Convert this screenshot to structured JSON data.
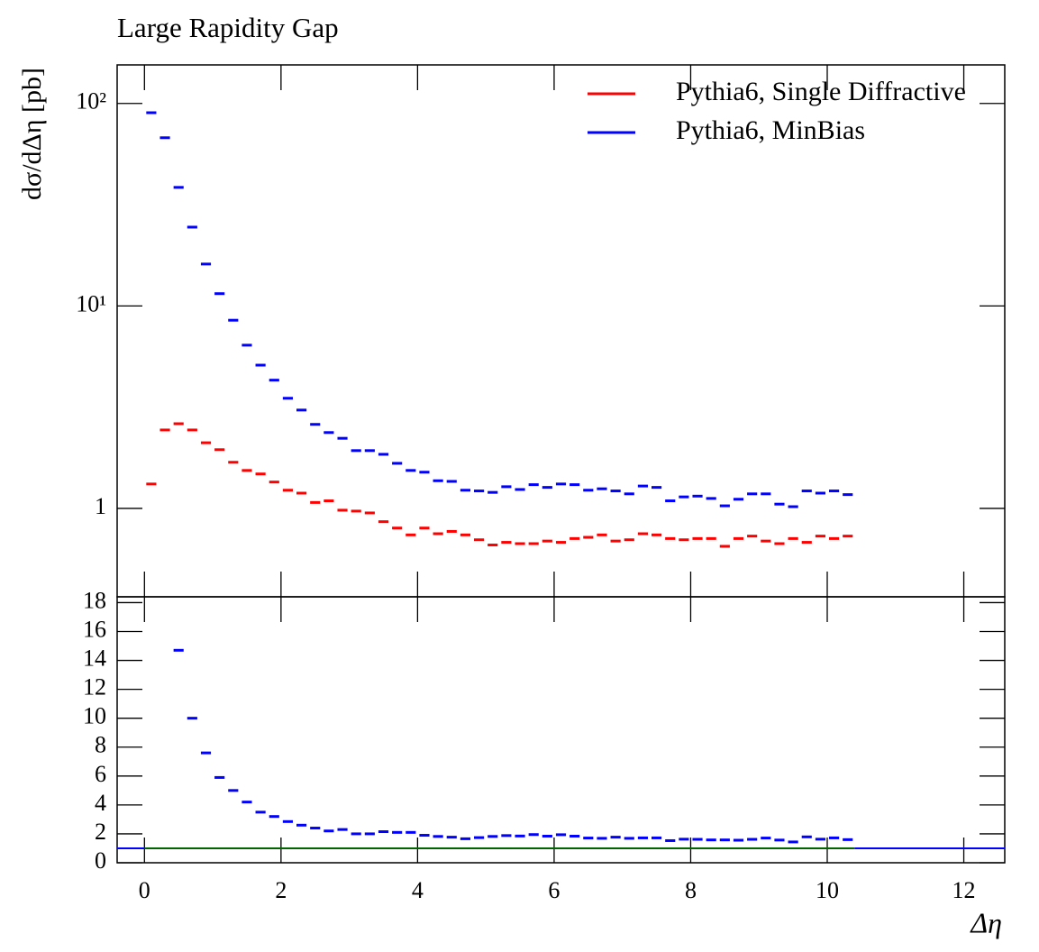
{
  "chart_data": [
    {
      "type": "histogram",
      "title": "Large Rapidity Gap",
      "ylabel": "dσ/dΔη [pb]",
      "log_y": true,
      "xlim": [
        -0.4,
        12.6
      ],
      "ylim": [
        0.366,
        155
      ],
      "yticks": [
        1,
        {
          "value": 10,
          "label": "10¹"
        },
        {
          "value": 100,
          "label": "10²"
        }
      ],
      "legend": "upper right",
      "bins": [
        0,
        0.2,
        0.4,
        0.6,
        0.8,
        1,
        1.2,
        1.4,
        1.6,
        1.8,
        2,
        2.2,
        2.4,
        2.6,
        2.8,
        3,
        3.2,
        3.4,
        3.6,
        3.8,
        4,
        4.2,
        4.4,
        4.6,
        4.8,
        5,
        5.2,
        5.4,
        5.6,
        5.8,
        6,
        6.2,
        6.4,
        6.6,
        6.8,
        7,
        7.2,
        7.4,
        7.6,
        7.8,
        8,
        8.2,
        8.4,
        8.6,
        8.8,
        9,
        9.2,
        9.4,
        9.6,
        9.8,
        10,
        10.2,
        10.4
      ],
      "series": [
        {
          "name": "Pythia6, Single Diffractive",
          "color": "#ff0000",
          "values": [
            1.32,
            2.44,
            2.62,
            2.44,
            2.11,
            1.95,
            1.69,
            1.54,
            1.48,
            1.35,
            1.23,
            1.19,
            1.07,
            1.09,
            0.98,
            0.97,
            0.95,
            0.86,
            0.8,
            0.74,
            0.8,
            0.75,
            0.77,
            0.74,
            0.7,
            0.66,
            0.68,
            0.67,
            0.67,
            0.69,
            0.68,
            0.71,
            0.72,
            0.74,
            0.69,
            0.7,
            0.75,
            0.74,
            0.71,
            0.7,
            0.71,
            0.71,
            0.65,
            0.71,
            0.73,
            0.69,
            0.67,
            0.71,
            0.68,
            0.73,
            0.71,
            0.73
          ]
        },
        {
          "name": "Pythia6, MinBias",
          "color": "#0000ff",
          "values": [
            90,
            67.7,
            38.5,
            24.5,
            16.1,
            11.5,
            8.5,
            6.4,
            5.1,
            4.3,
            3.5,
            3.06,
            2.6,
            2.37,
            2.22,
            1.93,
            1.93,
            1.85,
            1.67,
            1.54,
            1.51,
            1.37,
            1.36,
            1.23,
            1.22,
            1.2,
            1.28,
            1.24,
            1.31,
            1.27,
            1.32,
            1.31,
            1.23,
            1.25,
            1.22,
            1.18,
            1.29,
            1.27,
            1.09,
            1.14,
            1.15,
            1.12,
            1.03,
            1.11,
            1.18,
            1.18,
            1.05,
            1.02,
            1.22,
            1.19,
            1.22,
            1.17
          ]
        }
      ]
    },
    {
      "type": "histogram",
      "xlabel": "Δη",
      "xlim": [
        -0.4,
        12.6
      ],
      "ylim": [
        0,
        18.4
      ],
      "xticks": [
        0,
        2,
        4,
        6,
        8,
        10,
        12
      ],
      "yticks": [
        0,
        2,
        4,
        6,
        8,
        10,
        12,
        14,
        16,
        18
      ],
      "reference_line": 1,
      "reference_color": "#006400",
      "bins": [
        0,
        0.2,
        0.4,
        0.6,
        0.8,
        1,
        1.2,
        1.4,
        1.6,
        1.8,
        2,
        2.2,
        2.4,
        2.6,
        2.8,
        3,
        3.2,
        3.4,
        3.6,
        3.8,
        4,
        4.2,
        4.4,
        4.6,
        4.8,
        5,
        5.2,
        5.4,
        5.6,
        5.8,
        6,
        6.2,
        6.4,
        6.6,
        6.8,
        7,
        7.2,
        7.4,
        7.6,
        7.8,
        8,
        8.2,
        8.4,
        8.6,
        8.8,
        9,
        9.2,
        9.4,
        9.6,
        9.8,
        10,
        10.2,
        10.4
      ],
      "series": [
        {
          "color": "#0000ff",
          "values": [
            null,
            null,
            14.7,
            10.0,
            7.6,
            5.9,
            5.0,
            4.2,
            3.5,
            3.2,
            2.85,
            2.6,
            2.4,
            2.2,
            2.3,
            2.0,
            2.0,
            2.15,
            2.1,
            2.1,
            1.9,
            1.82,
            1.77,
            1.66,
            1.74,
            1.82,
            1.88,
            1.85,
            1.95,
            1.84,
            1.94,
            1.84,
            1.71,
            1.69,
            1.77,
            1.69,
            1.72,
            1.72,
            1.53,
            1.63,
            1.62,
            1.58,
            1.58,
            1.56,
            1.62,
            1.71,
            1.57,
            1.44,
            1.79,
            1.63,
            1.72,
            1.6
          ]
        }
      ]
    }
  ]
}
